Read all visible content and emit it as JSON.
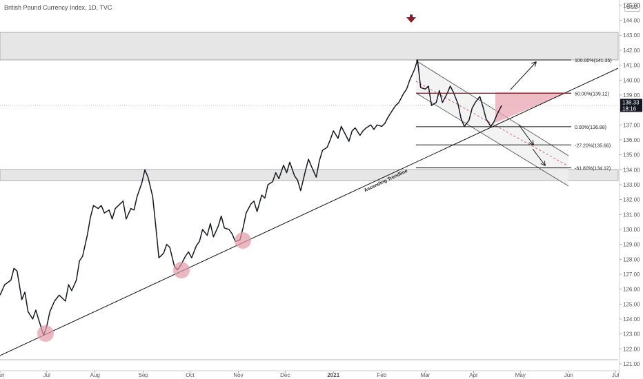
{
  "header": {
    "title": "British Pound Currency Index, 1D, TVC",
    "currency": "USD"
  },
  "price_tag": {
    "price": "138.33",
    "time": "18:16"
  },
  "chart_data": {
    "type": "line",
    "title": "British Pound Currency Index, 1D, TVC",
    "ylim": [
      120.75,
      145.5
    ],
    "y_ticks": [
      "121.00",
      "122.00",
      "123.00",
      "124.00",
      "125.00",
      "126.00",
      "127.00",
      "128.00",
      "129.00",
      "130.00",
      "131.00",
      "132.00",
      "133.00",
      "134.00",
      "135.00",
      "136.00",
      "137.00",
      "138.00",
      "139.00",
      "140.00",
      "141.00",
      "142.00",
      "143.00",
      "144.00",
      "145.00"
    ],
    "x_ticks": [
      {
        "label": "Jun",
        "x": "2020-06-01"
      },
      {
        "label": "Jul",
        "x": "2020-07-01"
      },
      {
        "label": "Aug",
        "x": "2020-08-01"
      },
      {
        "label": "Sep",
        "x": "2020-09-01"
      },
      {
        "label": "Oct",
        "x": "2020-10-01"
      },
      {
        "label": "Nov",
        "x": "2020-11-01"
      },
      {
        "label": "Dec",
        "x": "2020-12-01"
      },
      {
        "label": "2021",
        "x": "2021-01-01"
      },
      {
        "label": "Feb",
        "x": "2021-02-01"
      },
      {
        "label": "Mar",
        "x": "2021-03-01"
      },
      {
        "label": "Apr",
        "x": "2021-04-01"
      },
      {
        "label": "May",
        "x": "2021-05-01"
      },
      {
        "label": "Jun",
        "x": "2021-06-01"
      },
      {
        "label": "Jul",
        "x": "2021-07-01"
      }
    ],
    "series": [
      {
        "points": [
          [
            "2020-06-01",
            125.6
          ],
          [
            "2020-06-04",
            126.3
          ],
          [
            "2020-06-08",
            126.6
          ],
          [
            "2020-06-10",
            127.4
          ],
          [
            "2020-06-12",
            127.2
          ],
          [
            "2020-06-15",
            125.3
          ],
          [
            "2020-06-17",
            125.8
          ],
          [
            "2020-06-19",
            124.5
          ],
          [
            "2020-06-22",
            124.0
          ],
          [
            "2020-06-24",
            124.6
          ],
          [
            "2020-06-26",
            123.9
          ],
          [
            "2020-06-29",
            122.9
          ],
          [
            "2020-07-01",
            123.5
          ],
          [
            "2020-07-03",
            124.5
          ],
          [
            "2020-07-06",
            125.2
          ],
          [
            "2020-07-09",
            125.6
          ],
          [
            "2020-07-13",
            125.2
          ],
          [
            "2020-07-15",
            126.3
          ],
          [
            "2020-07-17",
            125.9
          ],
          [
            "2020-07-20",
            126.6
          ],
          [
            "2020-07-22",
            127.9
          ],
          [
            "2020-07-24",
            128.2
          ],
          [
            "2020-07-27",
            129.6
          ],
          [
            "2020-07-29",
            130.8
          ],
          [
            "2020-07-31",
            131.6
          ],
          [
            "2020-08-03",
            131.4
          ],
          [
            "2020-08-05",
            131.6
          ],
          [
            "2020-08-07",
            131.1
          ],
          [
            "2020-08-10",
            131.3
          ],
          [
            "2020-08-12",
            130.7
          ],
          [
            "2020-08-14",
            131.4
          ],
          [
            "2020-08-17",
            131.7
          ],
          [
            "2020-08-19",
            131.9
          ],
          [
            "2020-08-21",
            130.7
          ],
          [
            "2020-08-24",
            131.4
          ],
          [
            "2020-08-26",
            131.3
          ],
          [
            "2020-08-28",
            132.2
          ],
          [
            "2020-08-31",
            133.1
          ],
          [
            "2020-09-02",
            134.0
          ],
          [
            "2020-09-04",
            133.5
          ],
          [
            "2020-09-07",
            132.2
          ],
          [
            "2020-09-09",
            130.2
          ],
          [
            "2020-09-11",
            128.1
          ],
          [
            "2020-09-14",
            128.4
          ],
          [
            "2020-09-16",
            129.0
          ],
          [
            "2020-09-18",
            128.8
          ],
          [
            "2020-09-21",
            127.5
          ],
          [
            "2020-09-23",
            127.3
          ],
          [
            "2020-09-25",
            127.6
          ],
          [
            "2020-09-28",
            128.2
          ],
          [
            "2020-09-30",
            128.5
          ],
          [
            "2020-10-02",
            128.1
          ],
          [
            "2020-10-05",
            128.9
          ],
          [
            "2020-10-07",
            129.2
          ],
          [
            "2020-10-09",
            130.0
          ],
          [
            "2020-10-12",
            129.6
          ],
          [
            "2020-10-14",
            130.4
          ],
          [
            "2020-10-16",
            129.5
          ],
          [
            "2020-10-19",
            130.2
          ],
          [
            "2020-10-21",
            130.9
          ],
          [
            "2020-10-23",
            130.1
          ],
          [
            "2020-10-26",
            130.0
          ],
          [
            "2020-10-28",
            129.7
          ],
          [
            "2020-10-30",
            129.2
          ],
          [
            "2020-11-02",
            129.3
          ],
          [
            "2020-11-04",
            130.1
          ],
          [
            "2020-11-06",
            131.1
          ],
          [
            "2020-11-09",
            131.7
          ],
          [
            "2020-11-11",
            131.9
          ],
          [
            "2020-11-13",
            131.2
          ],
          [
            "2020-11-16",
            132.3
          ],
          [
            "2020-11-18",
            132.1
          ],
          [
            "2020-11-20",
            133.0
          ],
          [
            "2020-11-23",
            133.2
          ],
          [
            "2020-11-25",
            133.8
          ],
          [
            "2020-11-27",
            133.4
          ],
          [
            "2020-11-30",
            134.3
          ],
          [
            "2020-12-02",
            133.8
          ],
          [
            "2020-12-04",
            134.5
          ],
          [
            "2020-12-07",
            133.6
          ],
          [
            "2020-12-09",
            133.3
          ],
          [
            "2020-12-11",
            132.6
          ],
          [
            "2020-12-14",
            133.9
          ],
          [
            "2020-12-16",
            134.7
          ],
          [
            "2020-12-18",
            134.2
          ],
          [
            "2020-12-21",
            133.5
          ],
          [
            "2020-12-23",
            134.6
          ],
          [
            "2020-12-25",
            135.3
          ],
          [
            "2020-12-28",
            135.5
          ],
          [
            "2020-12-30",
            136.0
          ],
          [
            "2021-01-01",
            136.6
          ],
          [
            "2021-01-04",
            136.1
          ],
          [
            "2021-01-06",
            136.9
          ],
          [
            "2021-01-08",
            136.5
          ],
          [
            "2021-01-11",
            135.9
          ],
          [
            "2021-01-13",
            136.6
          ],
          [
            "2021-01-15",
            136.8
          ],
          [
            "2021-01-18",
            136.3
          ],
          [
            "2021-01-20",
            136.6
          ],
          [
            "2021-01-22",
            136.8
          ],
          [
            "2021-01-25",
            137.0
          ],
          [
            "2021-01-27",
            136.7
          ],
          [
            "2021-01-29",
            137.0
          ],
          [
            "2021-02-01",
            136.9
          ],
          [
            "2021-02-03",
            137.1
          ],
          [
            "2021-02-05",
            137.5
          ],
          [
            "2021-02-08",
            138.0
          ],
          [
            "2021-02-10",
            138.3
          ],
          [
            "2021-02-12",
            138.5
          ],
          [
            "2021-02-15",
            139.1
          ],
          [
            "2021-02-17",
            139.4
          ],
          [
            "2021-02-19",
            140.0
          ],
          [
            "2021-02-22",
            140.7
          ],
          [
            "2021-02-24",
            141.35
          ],
          [
            "2021-02-26",
            139.5
          ],
          [
            "2021-03-01",
            139.4
          ],
          [
            "2021-03-03",
            139.6
          ],
          [
            "2021-03-05",
            138.3
          ],
          [
            "2021-03-08",
            138.5
          ],
          [
            "2021-03-10",
            139.3
          ],
          [
            "2021-03-12",
            138.5
          ],
          [
            "2021-03-15",
            139.1
          ],
          [
            "2021-03-17",
            139.6
          ],
          [
            "2021-03-19",
            139.2
          ],
          [
            "2021-03-22",
            138.4
          ],
          [
            "2021-03-24",
            137.4
          ],
          [
            "2021-03-26",
            136.9
          ],
          [
            "2021-03-29",
            137.3
          ],
          [
            "2021-03-31",
            138.1
          ],
          [
            "2021-04-02",
            138.5
          ],
          [
            "2021-04-05",
            138.9
          ],
          [
            "2021-04-07",
            138.2
          ],
          [
            "2021-04-09",
            137.4
          ],
          [
            "2021-04-12",
            136.9
          ],
          [
            "2021-04-14",
            137.2
          ],
          [
            "2021-04-16",
            137.7
          ],
          [
            "2021-04-19",
            138.3
          ]
        ]
      }
    ],
    "fib_levels": [
      {
        "label": "100.00%(141.35)",
        "price": 141.35
      },
      {
        "label": "50.00%(139.12)",
        "price": 139.12
      },
      {
        "label": "0.00%(136.88)",
        "price": 136.88
      },
      {
        "label": "-27.20%(135.66)",
        "price": 135.66
      },
      {
        "label": "-61.80%(134.12)",
        "price": 134.12
      }
    ],
    "resistance_zone": [
      142.2,
      143.1
    ],
    "support_zone": [
      133.35,
      134.05
    ],
    "trendline_label": "Ascending Trendline",
    "colors": {
      "price": "#131722",
      "fib_50": "#a0202a",
      "marker": "#8b1a2b",
      "touch": "#e29aa6",
      "zone": "#e6e6e6",
      "wedge": "#e9a6b1"
    }
  }
}
